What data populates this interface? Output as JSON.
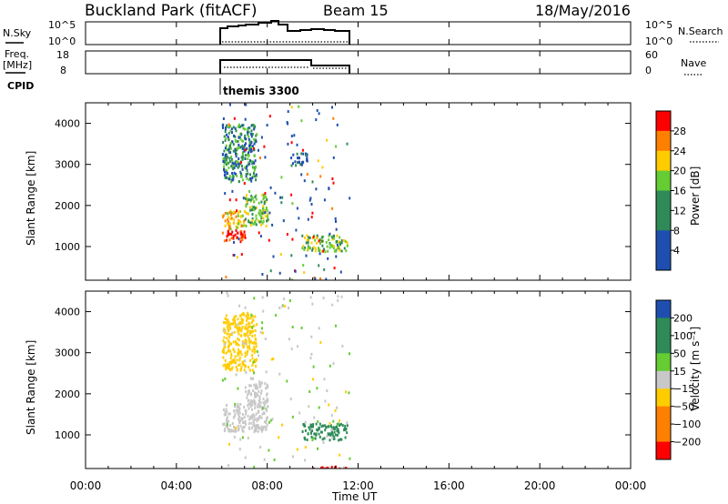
{
  "header": {
    "radar": "Buckland Park (fitACF)",
    "beam": "Beam 15",
    "date": "18/May/2016"
  },
  "left_labels": {
    "nsky": "N.Sky",
    "freq": "Freq.",
    "freq_unit": "[MHz]",
    "cpid": "CPID"
  },
  "right_labels": {
    "nsearch": "N.Search",
    "nave": "Nave"
  },
  "cpid_text": "themis 3300",
  "colors": {
    "axis": "#000000",
    "red": "#ff0000",
    "orange": "#ff7f00",
    "yellow": "#ffcc00",
    "green": "#66cc33",
    "dkgreen": "#2e8b57",
    "blue": "#1e4fb0",
    "gray": "#c8c8c8",
    "purple": "#5a2a8a"
  },
  "chart_data": [
    {
      "type": "line",
      "name": "nsky-panel",
      "yticks_left": [
        "10^5",
        "10^0"
      ],
      "yticks_right": [
        "10^5",
        "10^0"
      ],
      "x": [
        "06:00",
        "06:30",
        "07:00",
        "07:30",
        "07:45",
        "08:00",
        "08:30",
        "09:00",
        "09:30",
        "10:00",
        "10:30",
        "11:00",
        "11:36"
      ],
      "series": [
        {
          "name": "N.Sky",
          "values": [
            3.2,
            3.6,
            3.8,
            4.0,
            4.6,
            4.4,
            3.4,
            3.5,
            3.6,
            3.5,
            3.4,
            3.2,
            3.0
          ]
        },
        {
          "name": "N.Search",
          "values": [
            0.3,
            0.3,
            0.3,
            0.3,
            0.3,
            0.3,
            0.3,
            0.3,
            0.3,
            0.3,
            0.3,
            0.3,
            0.3
          ]
        }
      ]
    },
    {
      "type": "line",
      "name": "freq-panel",
      "yticks_left": [
        "18",
        "8"
      ],
      "yticks_right": [
        "60",
        "0"
      ],
      "x": [
        "06:00",
        "10:00",
        "10:01",
        "11:36"
      ],
      "series": [
        {
          "name": "Freq",
          "values": [
            12.0,
            12.0,
            10.5,
            10.5
          ]
        },
        {
          "name": "Nave",
          "values": [
            30,
            30,
            21,
            21
          ]
        }
      ]
    },
    {
      "type": "heatmap",
      "name": "power-panel",
      "xlabel": "",
      "ylabel": "Slant Range [km]",
      "xlim": [
        "00:00",
        "24:00"
      ],
      "ylim": [
        180,
        4500
      ],
      "yticks": [
        1000,
        2000,
        3000,
        4000
      ],
      "colorbar": {
        "label": "Power [dB]",
        "ticks": [
          28,
          24,
          20,
          16,
          12,
          8,
          4
        ],
        "range": [
          0,
          32
        ]
      },
      "regions": [
        {
          "t_start": "06:00",
          "t_end": "07:00",
          "range_km": [
            1150,
            1450
          ],
          "value": 26
        },
        {
          "t_start": "06:00",
          "t_end": "07:00",
          "range_km": [
            1450,
            1900
          ],
          "value": 18
        },
        {
          "t_start": "07:00",
          "t_end": "08:00",
          "range_km": [
            1500,
            2300
          ],
          "value": 14
        },
        {
          "t_start": "06:00",
          "t_end": "07:30",
          "range_km": [
            2600,
            4000
          ],
          "value": 10
        },
        {
          "t_start": "09:30",
          "t_end": "11:30",
          "range_km": [
            900,
            1300
          ],
          "value": 14
        },
        {
          "t_start": "09:00",
          "t_end": "09:45",
          "range_km": [
            3000,
            3300
          ],
          "value": 6
        }
      ]
    },
    {
      "type": "heatmap",
      "name": "velocity-panel",
      "xlabel": "Time UT",
      "ylabel": "Slant Range [km]",
      "xlim": [
        "00:00",
        "24:00"
      ],
      "xticks": [
        "00:00",
        "04:00",
        "08:00",
        "12:00",
        "16:00",
        "20:00",
        "00:00"
      ],
      "ylim": [
        180,
        4500
      ],
      "yticks": [
        1000,
        2000,
        3000,
        4000
      ],
      "colorbar": {
        "label": "Velocity [m s⁻¹]",
        "ticks": [
          "200",
          "100",
          "50",
          "15",
          "−15",
          "−50",
          "−100",
          "−200"
        ],
        "range": [
          -250,
          250
        ]
      },
      "regions": [
        {
          "t_start": "06:00",
          "t_end": "08:00",
          "range_km": [
            1100,
            1800
          ],
          "value": 0
        },
        {
          "t_start": "07:00",
          "t_end": "08:00",
          "range_km": [
            1800,
            2300
          ],
          "value": 0
        },
        {
          "t_start": "06:00",
          "t_end": "07:30",
          "range_km": [
            2600,
            4000
          ],
          "value": -40
        },
        {
          "t_start": "09:30",
          "t_end": "11:30",
          "range_km": [
            900,
            1300
          ],
          "value": 60
        },
        {
          "t_start": "10:00",
          "t_end": "11:30",
          "range_km": [
            180,
            260
          ],
          "value": -200
        }
      ]
    }
  ]
}
